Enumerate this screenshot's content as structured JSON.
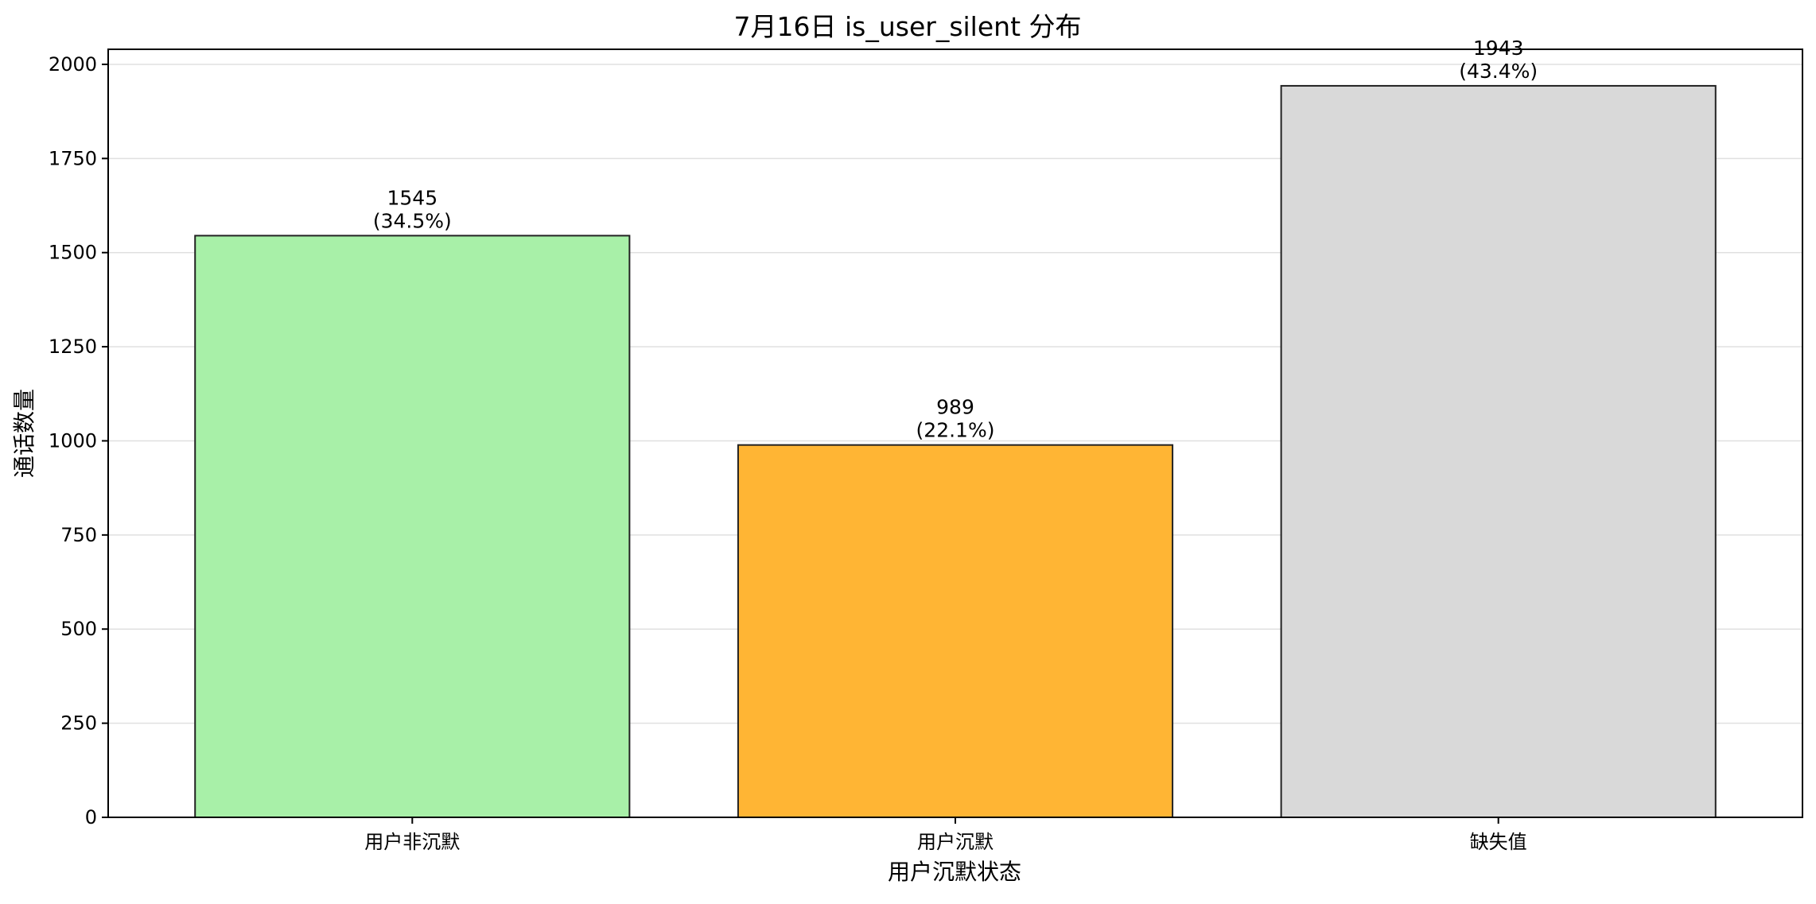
{
  "chart_data": {
    "type": "bar",
    "title": "7月16日 is_user_silent 分布",
    "xlabel": "用户沉默状态",
    "ylabel": "通话数量",
    "categories": [
      "用户非沉默",
      "用户沉默",
      "缺失值"
    ],
    "values": [
      1545,
      989,
      1943
    ],
    "percent_labels": [
      "(34.5%)",
      "(22.1%)",
      "(43.4%)"
    ],
    "bar_colors": [
      "#a8f0a8",
      "#ffb534",
      "#d9d9d9"
    ],
    "bar_edge_color": "#222222",
    "ylim": [
      0,
      2040
    ],
    "yticks": [
      0,
      250,
      500,
      750,
      1000,
      1250,
      1500,
      1750,
      2000
    ],
    "grid": "horizontal",
    "legend": "none"
  }
}
